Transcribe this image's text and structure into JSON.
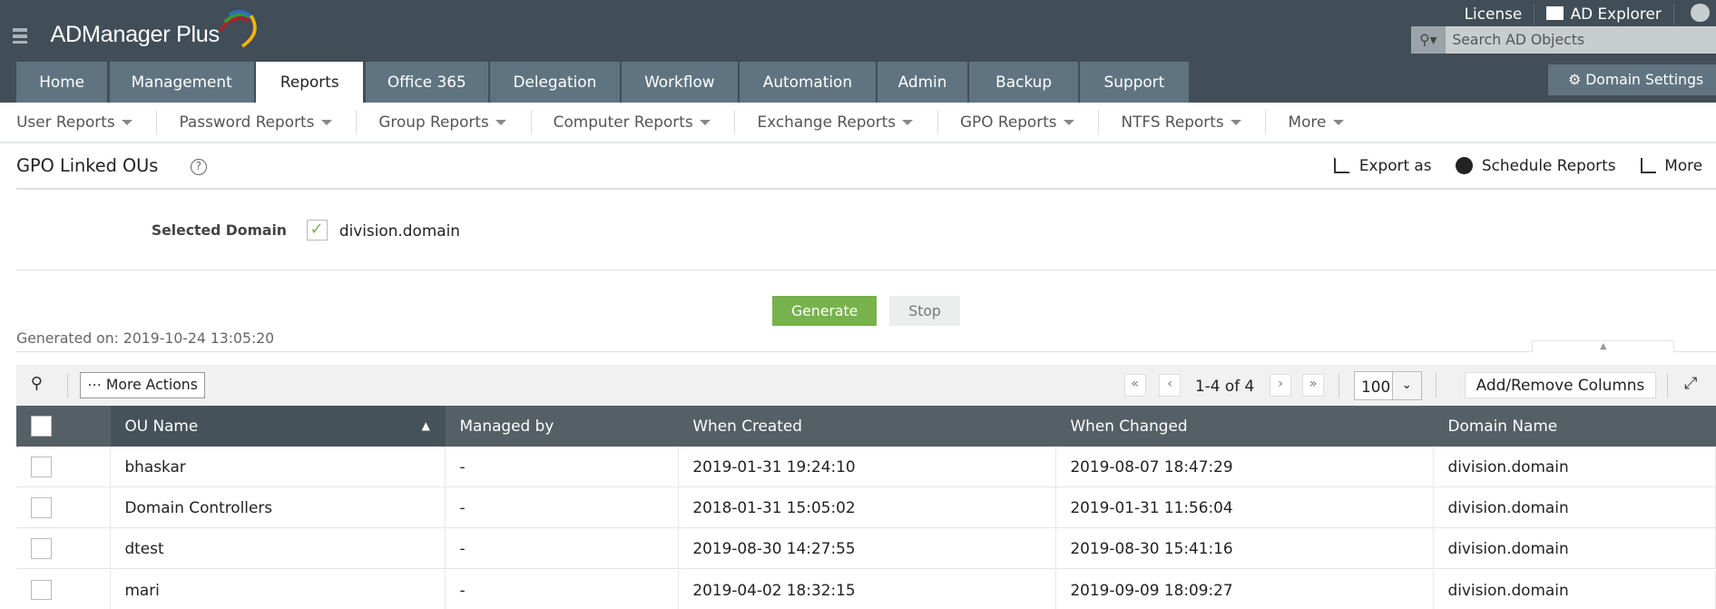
{
  "app": {
    "name": "ADManager Plus"
  },
  "header": {
    "license": "License",
    "ad_explorer": "AD Explorer",
    "search_placeholder": "Search AD Objects",
    "domain_settings": "Domain Settings"
  },
  "tabs": [
    {
      "label": "Home"
    },
    {
      "label": "Management"
    },
    {
      "label": "Reports",
      "active": true
    },
    {
      "label": "Office 365"
    },
    {
      "label": "Delegation"
    },
    {
      "label": "Workflow"
    },
    {
      "label": "Automation"
    },
    {
      "label": "Admin"
    },
    {
      "label": "Backup"
    },
    {
      "label": "Support"
    }
  ],
  "subnav": [
    "User Reports",
    "Password Reports",
    "Group Reports",
    "Computer Reports",
    "Exchange Reports",
    "GPO Reports",
    "NTFS Reports",
    "More"
  ],
  "page": {
    "title": "GPO Linked OUs",
    "export": "Export as",
    "schedule": "Schedule Reports",
    "more": "More",
    "selected_domain_label": "Selected Domain",
    "selected_domain": "division.domain",
    "generate": "Generate",
    "stop": "Stop",
    "generated_on": "Generated on: 2019-10-24 13:05:20"
  },
  "toolbar": {
    "more_actions": "More Actions",
    "range": "1-4 of 4",
    "page_size": "100",
    "add_remove": "Add/Remove Columns"
  },
  "table": {
    "columns": [
      "OU Name",
      "Managed by",
      "When Created",
      "When Changed",
      "Domain Name"
    ],
    "rows": [
      [
        "bhaskar",
        "-",
        "2019-01-31 19:24:10",
        "2019-08-07 18:47:29",
        "division.domain"
      ],
      [
        "Domain Controllers",
        "-",
        "2018-01-31 15:05:02",
        "2019-01-31 11:56:04",
        "division.domain"
      ],
      [
        "dtest",
        "-",
        "2019-08-30 14:27:55",
        "2019-08-30 15:41:16",
        "division.domain"
      ],
      [
        "mari",
        "-",
        "2019-04-02 18:32:15",
        "2019-09-09 18:09:27",
        "division.domain"
      ]
    ]
  },
  "colors": {
    "topbar": "#414d57",
    "tab": "#5f7480",
    "generate": "#77b24c",
    "table_header": "#555f66"
  }
}
